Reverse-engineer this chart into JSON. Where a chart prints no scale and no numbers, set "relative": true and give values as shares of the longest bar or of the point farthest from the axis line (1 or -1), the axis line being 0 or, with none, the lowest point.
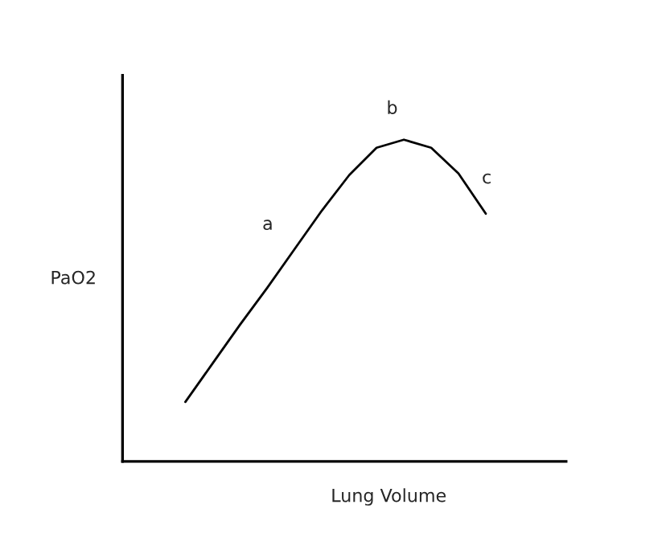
{
  "chart_data": {
    "type": "line",
    "relative": true,
    "xlabel": "Lung Volume",
    "ylabel": "PaO2",
    "categories": [
      null,
      null,
      null,
      null,
      null,
      null,
      null,
      null,
      null,
      null,
      null,
      null
    ],
    "series": [
      {
        "color": "#000000",
        "values": [
          0.185,
          0.305,
          0.425,
          0.54,
          0.66,
          0.78,
          0.89,
          0.975,
          1.0,
          0.975,
          0.895,
          0.77
        ]
      }
    ],
    "annotations": [
      "a",
      "b",
      "c"
    ],
    "marker": "none",
    "line_style": "solid"
  }
}
